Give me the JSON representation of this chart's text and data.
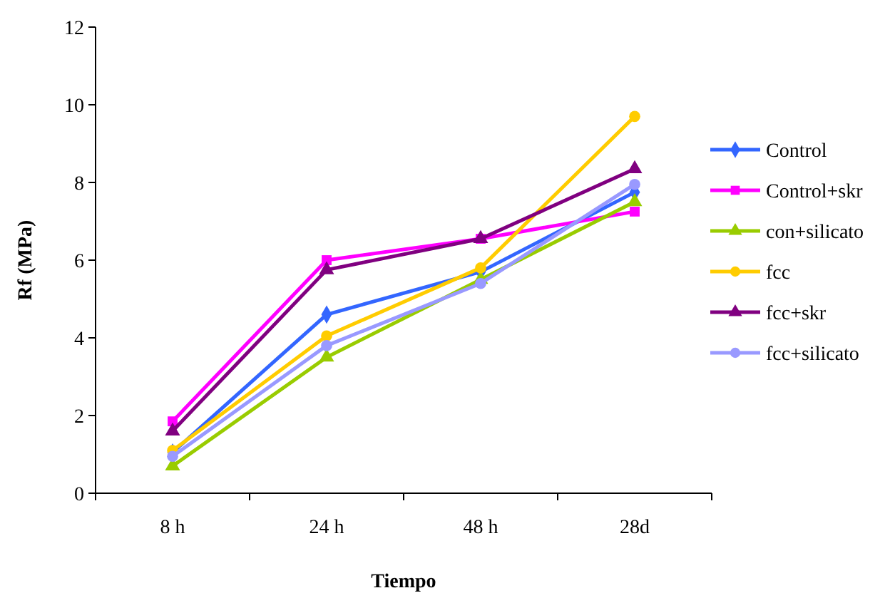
{
  "chart_data": {
    "type": "line",
    "xlabel": "Tiempo",
    "ylabel": "Rf (MPa)",
    "categories": [
      "8 h",
      "24 h",
      "48 h",
      "28d"
    ],
    "ylim": [
      0,
      12
    ],
    "yticks": [
      0,
      2,
      4,
      6,
      8,
      10,
      12
    ],
    "grid": false,
    "legend": "right",
    "series": [
      {
        "name": "Control",
        "color": "#3366ff",
        "marker": "diamond",
        "values": [
          1.05,
          4.6,
          5.7,
          7.75
        ]
      },
      {
        "name": "Control+skr",
        "color": "#ff00ff",
        "marker": "square",
        "values": [
          1.85,
          6.0,
          6.55,
          7.25
        ]
      },
      {
        "name": "con+silicato",
        "color": "#99cc00",
        "marker": "triangle",
        "values": [
          0.7,
          3.5,
          5.5,
          7.5
        ]
      },
      {
        "name": "fcc",
        "color": "#ffcc00",
        "marker": "circle",
        "values": [
          1.1,
          4.05,
          5.8,
          9.7
        ]
      },
      {
        "name": "fcc+skr",
        "color": "#800080",
        "marker": "triangle",
        "values": [
          1.6,
          5.75,
          6.55,
          8.35
        ]
      },
      {
        "name": "fcc+silicato",
        "color": "#9999ff",
        "marker": "circle",
        "values": [
          0.95,
          3.8,
          5.4,
          7.95
        ]
      }
    ]
  }
}
